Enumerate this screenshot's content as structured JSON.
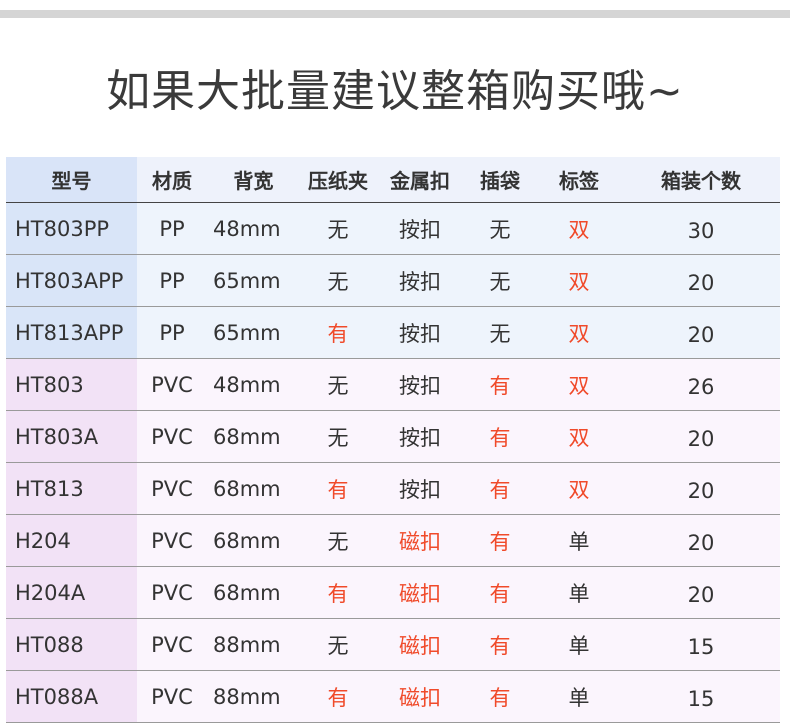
{
  "title": "如果大批量建议整箱购买哦~",
  "headers": [
    "型号",
    "材质",
    "背宽",
    "压纸夹",
    "金属扣",
    "插袋",
    "标签",
    "箱装个数"
  ],
  "colors": {
    "highlight": "#f04a2a",
    "pp_row": "#eef4fc",
    "pvc_row": "#fbf5fd"
  },
  "rows": [
    {
      "model": "HT803PP",
      "material": "PP",
      "width": "48mm",
      "clip": "无",
      "buckle": "按扣",
      "pocket": "无",
      "label": "双",
      "count": "30"
    },
    {
      "model": "HT803APP",
      "material": "PP",
      "width": "65mm",
      "clip": "无",
      "buckle": "按扣",
      "pocket": "无",
      "label": "双",
      "count": "20"
    },
    {
      "model": "HT813APP",
      "material": "PP",
      "width": "65mm",
      "clip": "有",
      "buckle": "按扣",
      "pocket": "无",
      "label": "双",
      "count": "20"
    },
    {
      "model": "HT803",
      "material": "PVC",
      "width": "48mm",
      "clip": "无",
      "buckle": "按扣",
      "pocket": "有",
      "label": "双",
      "count": "26"
    },
    {
      "model": "HT803A",
      "material": "PVC",
      "width": "68mm",
      "clip": "无",
      "buckle": "按扣",
      "pocket": "有",
      "label": "双",
      "count": "20"
    },
    {
      "model": "HT813",
      "material": "PVC",
      "width": "68mm",
      "clip": "有",
      "buckle": "按扣",
      "pocket": "有",
      "label": "双",
      "count": "20"
    },
    {
      "model": "H204",
      "material": "PVC",
      "width": "68mm",
      "clip": "无",
      "buckle": "磁扣",
      "pocket": "有",
      "label": "单",
      "count": "20"
    },
    {
      "model": "H204A",
      "material": "PVC",
      "width": "68mm",
      "clip": "有",
      "buckle": "磁扣",
      "pocket": "有",
      "label": "单",
      "count": "20"
    },
    {
      "model": "HT088",
      "material": "PVC",
      "width": "88mm",
      "clip": "无",
      "buckle": "磁扣",
      "pocket": "有",
      "label": "单",
      "count": "15"
    },
    {
      "model": "HT088A",
      "material": "PVC",
      "width": "88mm",
      "clip": "有",
      "buckle": "磁扣",
      "pocket": "有",
      "label": "单",
      "count": "15"
    }
  ]
}
